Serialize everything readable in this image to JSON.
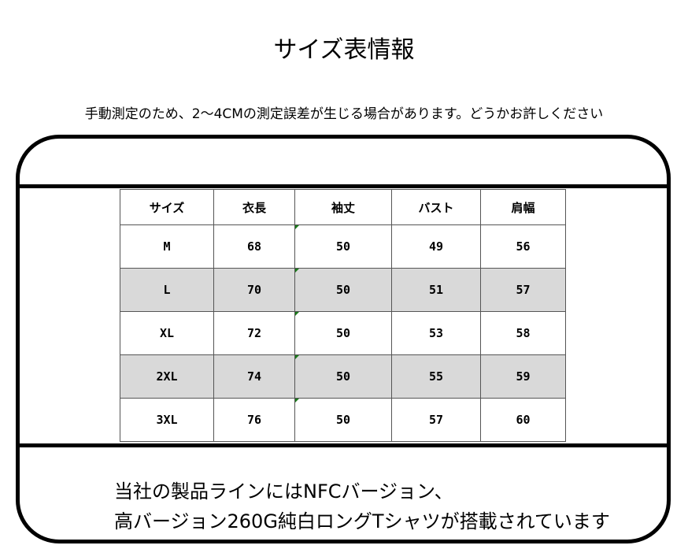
{
  "title": "サイズ表情報",
  "note": "手動測定のため、2〜4CMの測定誤差が生じる場合があります。どうかお許しください",
  "table": {
    "headers": [
      "サイズ",
      "衣長",
      "袖丈",
      "バスト",
      "肩幅"
    ],
    "rows": [
      [
        "M",
        "68",
        "50",
        "49",
        "56"
      ],
      [
        "L",
        "70",
        "50",
        "51",
        "57"
      ],
      [
        "XL",
        "72",
        "50",
        "53",
        "58"
      ],
      [
        "2XL",
        "74",
        "50",
        "55",
        "59"
      ],
      [
        "3XL",
        "76",
        "50",
        "57",
        "60"
      ]
    ],
    "stripe_color": "#d9d9d9"
  },
  "bottom": {
    "line1": "当社の製品ラインにはNFCバージョン、",
    "line2": "高バージョン260G純白ロングTシャツが搭載されています"
  }
}
